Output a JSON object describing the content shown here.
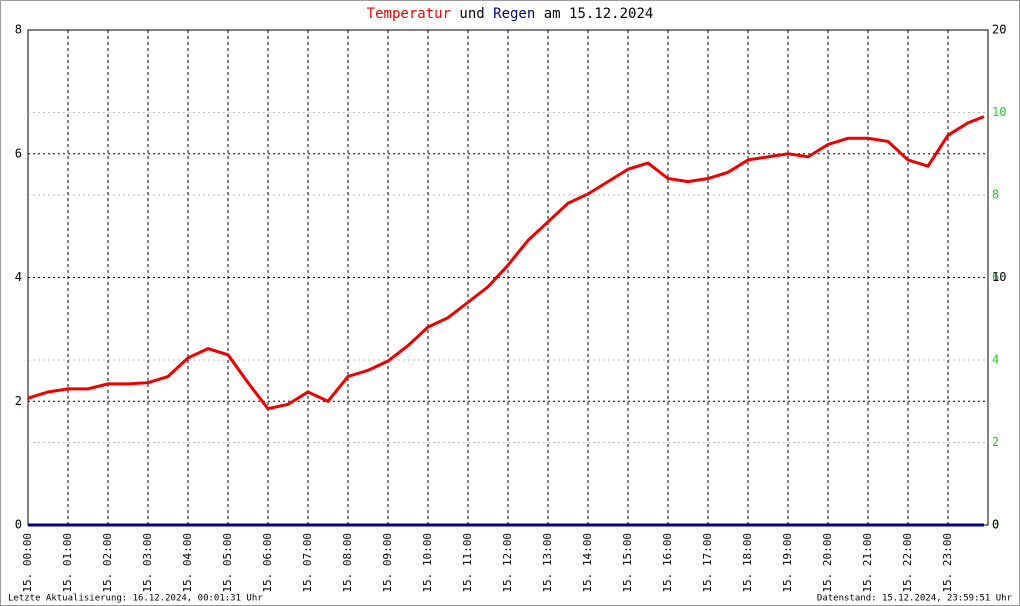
{
  "chart_data": {
    "type": "line",
    "title_parts": [
      "Temperatur",
      "und",
      "Regen",
      "am 15.12.2024"
    ],
    "xlim": [
      0,
      24
    ],
    "xticks": [
      {
        "value": 0,
        "label": "15. 00:00"
      },
      {
        "value": 1,
        "label": "15. 01:00"
      },
      {
        "value": 2,
        "label": "15. 02:00"
      },
      {
        "value": 3,
        "label": "15. 03:00"
      },
      {
        "value": 4,
        "label": "15. 04:00"
      },
      {
        "value": 5,
        "label": "15. 05:00"
      },
      {
        "value": 6,
        "label": "15. 06:00"
      },
      {
        "value": 7,
        "label": "15. 07:00"
      },
      {
        "value": 8,
        "label": "15. 08:00"
      },
      {
        "value": 9,
        "label": "15. 09:00"
      },
      {
        "value": 10,
        "label": "15. 10:00"
      },
      {
        "value": 11,
        "label": "15. 11:00"
      },
      {
        "value": 12,
        "label": "15. 12:00"
      },
      {
        "value": 13,
        "label": "15. 13:00"
      },
      {
        "value": 14,
        "label": "15. 14:00"
      },
      {
        "value": 15,
        "label": "15. 15:00"
      },
      {
        "value": 16,
        "label": "15. 16:00"
      },
      {
        "value": 17,
        "label": "15. 17:00"
      },
      {
        "value": 18,
        "label": "15. 18:00"
      },
      {
        "value": 19,
        "label": "15. 19:00"
      },
      {
        "value": 20,
        "label": "15. 20:00"
      },
      {
        "value": 21,
        "label": "15. 21:00"
      },
      {
        "value": 22,
        "label": "15. 22:00"
      },
      {
        "value": 23,
        "label": "15. 23:00"
      }
    ],
    "ylim": [
      0,
      8
    ],
    "yticks": [
      0,
      2,
      4,
      6,
      8
    ],
    "y2lim": [
      0,
      20
    ],
    "y2ticks": [
      0,
      10,
      20
    ],
    "y3lim": [
      0,
      12
    ],
    "y3ticks": [
      0,
      2,
      4,
      6,
      8,
      10
    ],
    "y3color": "#22cc22",
    "x": [
      0,
      0.5,
      1,
      1.5,
      2,
      2.5,
      3,
      3.5,
      4,
      4.5,
      5,
      5.5,
      6,
      6.5,
      7,
      7.5,
      8,
      8.5,
      9,
      9.5,
      10,
      10.5,
      11,
      11.5,
      12,
      12.5,
      13,
      13.5,
      14,
      14.5,
      15,
      15.5,
      16,
      16.5,
      17,
      17.5,
      18,
      18.5,
      19,
      19.5,
      20,
      20.5,
      21,
      21.5,
      22,
      22.5,
      23,
      23.5,
      23.9
    ],
    "series": [
      {
        "name": "Temperatur",
        "color": "#ee0000",
        "values": [
          2.05,
          2.15,
          2.2,
          2.2,
          2.28,
          2.28,
          2.3,
          2.4,
          2.7,
          2.85,
          2.75,
          2.3,
          1.88,
          1.95,
          2.15,
          2.0,
          2.4,
          2.5,
          2.65,
          2.9,
          3.2,
          3.35,
          3.6,
          3.85,
          4.2,
          4.6,
          4.9,
          5.2,
          5.35,
          5.55,
          5.75,
          5.85,
          5.6,
          5.55,
          5.6,
          5.7,
          5.9,
          5.95,
          6.0,
          5.95,
          6.15,
          6.25,
          6.25,
          6.2,
          5.9,
          5.8,
          6.3,
          6.5,
          6.6
        ]
      },
      {
        "name": "Regen",
        "color": "#000080",
        "axis": "y2",
        "values": [
          0,
          0,
          0,
          0,
          0,
          0,
          0,
          0,
          0,
          0,
          0,
          0,
          0,
          0,
          0,
          0,
          0,
          0,
          0,
          0,
          0,
          0,
          0,
          0,
          0,
          0,
          0,
          0,
          0,
          0,
          0,
          0,
          0,
          0,
          0,
          0,
          0,
          0,
          0,
          0,
          0,
          0,
          0,
          0,
          0,
          0,
          0,
          0,
          0
        ]
      }
    ],
    "footer_left": "Letzte Aktualisierung: 16.12.2024, 00:01:31 Uhr",
    "footer_right": "Datenstand: 15.12.2024, 23:59:51 Uhr"
  }
}
